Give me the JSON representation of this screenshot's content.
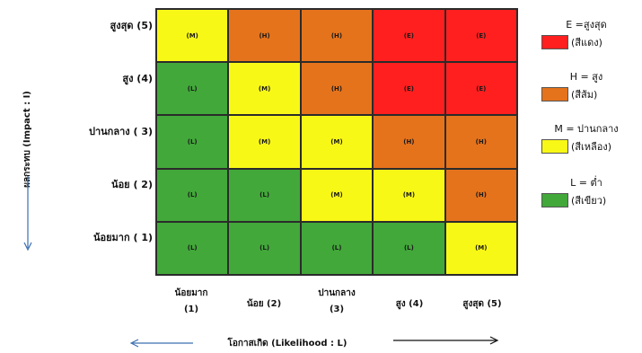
{
  "colors": {
    "E": "#ff1f1f",
    "H": "#e5731c",
    "M": "#f8f817",
    "L": "#42a83a"
  },
  "axes": {
    "y_title": "ผลกระทบ (Impact : I)",
    "x_title": "โอกาสเกิด (Likelihood : L)"
  },
  "rows": [
    {
      "label": "สูงสุด (5)"
    },
    {
      "label": "สูง (4)"
    },
    {
      "label": "ปานกลาง ( 3)"
    },
    {
      "label": "น้อย ( 2)"
    },
    {
      "label": "น้อยมาก ( 1)"
    }
  ],
  "columns": [
    {
      "line1": "น้อยมาก",
      "line2": "(1)"
    },
    {
      "line1": "น้อย (2)",
      "line2": ""
    },
    {
      "line1": "ปานกลาง",
      "line2": "(3)"
    },
    {
      "line1": "สูง (4)",
      "line2": ""
    },
    {
      "line1": "สูงสุด (5)",
      "line2": ""
    }
  ],
  "cells": [
    [
      {
        "level": "M",
        "text": "(M)"
      },
      {
        "level": "H",
        "text": "(H)"
      },
      {
        "level": "H",
        "text": "(H)"
      },
      {
        "level": "E",
        "text": "(E)"
      },
      {
        "level": "E",
        "text": "(E)"
      }
    ],
    [
      {
        "level": "L",
        "text": "(L)"
      },
      {
        "level": "M",
        "text": "(M)"
      },
      {
        "level": "H",
        "text": "(H)"
      },
      {
        "level": "E",
        "text": "(E)"
      },
      {
        "level": "E",
        "text": "(E)"
      }
    ],
    [
      {
        "level": "L",
        "text": "(L)"
      },
      {
        "level": "M",
        "text": "(M)"
      },
      {
        "level": "M",
        "text": "(M)"
      },
      {
        "level": "H",
        "text": "(H)"
      },
      {
        "level": "H",
        "text": "(H)"
      }
    ],
    [
      {
        "level": "L",
        "text": "(L)"
      },
      {
        "level": "L",
        "text": "(L)"
      },
      {
        "level": "M",
        "text": "(M)"
      },
      {
        "level": "M",
        "text": "(M)"
      },
      {
        "level": "H",
        "text": "(H)"
      }
    ],
    [
      {
        "level": "L",
        "text": "(L)"
      },
      {
        "level": "L",
        "text": "(L)"
      },
      {
        "level": "L",
        "text": "(L)"
      },
      {
        "level": "L",
        "text": "(L)"
      },
      {
        "level": "M",
        "text": "(M)"
      }
    ]
  ],
  "legend": [
    {
      "level": "E",
      "label": "E =สูงสุด",
      "color_name": "(สีแดง)"
    },
    {
      "level": "H",
      "label": "H = สูง",
      "color_name": "(สีส้ม)"
    },
    {
      "level": "M",
      "label": "M = ปานกลาง",
      "color_name": "(สีเหลือง)"
    },
    {
      "level": "L",
      "label": "L = ต่ำ",
      "color_name": "(สีเขียว)"
    }
  ]
}
